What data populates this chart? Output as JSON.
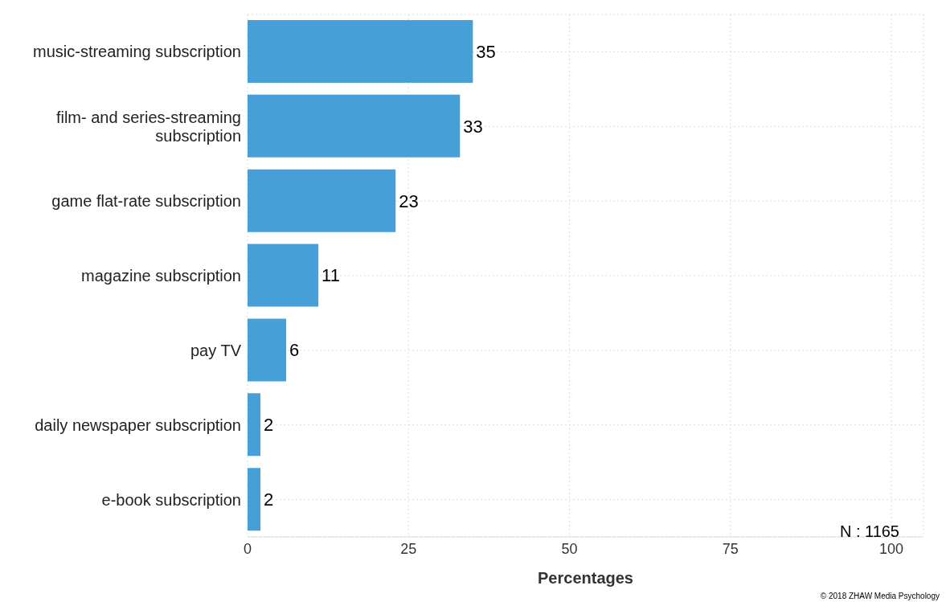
{
  "chart_data": {
    "type": "bar",
    "orientation": "horizontal",
    "xlabel": "Percentages",
    "categories": [
      "music-streaming subscription",
      "film- and series-streaming subscription",
      "game flat-rate subscription",
      "magazine subscription",
      "pay TV",
      "daily newspaper subscription",
      "e-book subscription"
    ],
    "values": [
      35,
      33,
      23,
      11,
      6,
      2,
      2
    ],
    "color": "#479fd8",
    "data_labels": true,
    "xlim": [
      0,
      105
    ],
    "xticks": [
      0,
      25,
      50,
      75,
      100
    ],
    "grid": true,
    "annotations": [
      "N : 1165",
      "© 2018 ZHAW Media Psychology"
    ]
  }
}
